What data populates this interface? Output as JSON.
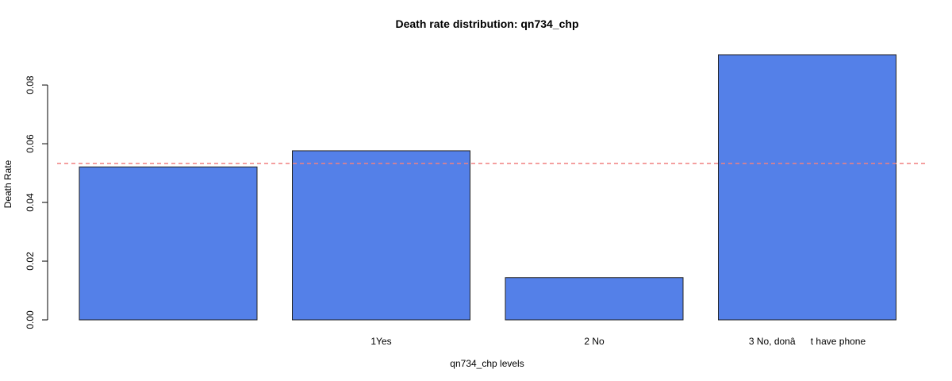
{
  "chart_data": {
    "type": "bar",
    "title": "Death rate distribution: qn734_chp",
    "xlabel": "qn734_chp levels",
    "ylabel": "Death Rate",
    "categories": [
      "",
      "1Yes",
      "2 No",
      "3 No, donât have phone"
    ],
    "values": [
      0.0521,
      0.0576,
      0.0144,
      0.0903
    ],
    "yticks": [
      "0.00",
      "0.02",
      "0.04",
      "0.06",
      "0.08"
    ],
    "ylim": [
      0,
      0.093
    ],
    "reference_line": {
      "value": 0.0533,
      "style": "dashed",
      "color": "#f08080"
    },
    "grid": false,
    "bar_color": "#5480e8",
    "bar_border_color": "#222222"
  }
}
